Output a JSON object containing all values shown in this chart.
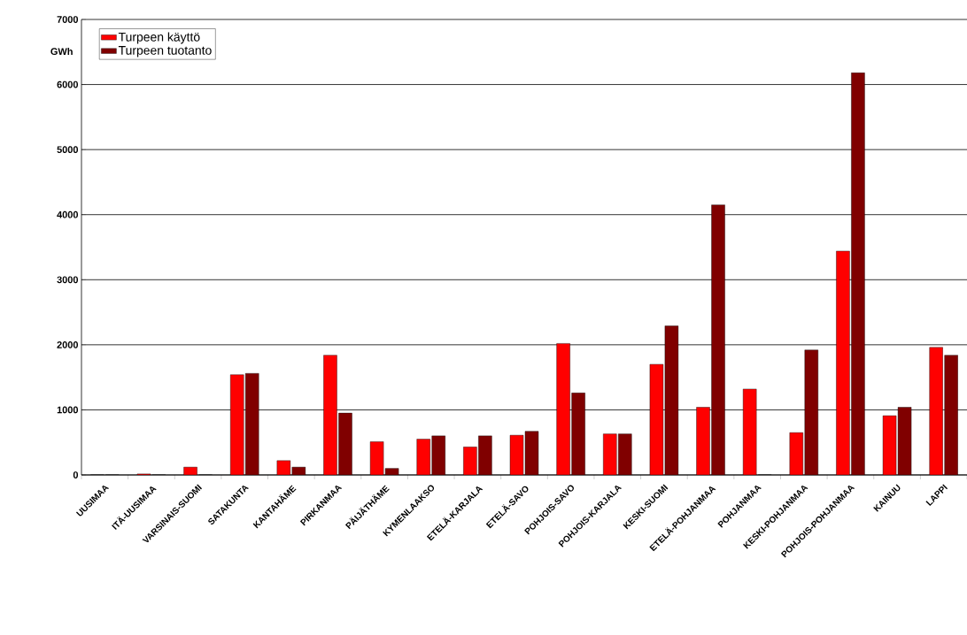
{
  "chart_data": {
    "type": "bar",
    "ylabel": "GWh",
    "categories": [
      "UUSIMAA",
      "ITÄ-UUSIMAA",
      "VARSINAIS-SUOMI",
      "SATAKUNTA",
      "KANTAHÄME",
      "PIRKANMAA",
      "PÄIJÄTHÄME",
      "KYMENLAAKSO",
      "ETELÄ-KARJALA",
      "ETELÄ-SAVO",
      "POHJOIS-SAVO",
      "POHJOIS-KARJALA",
      "KESKI-SUOMI",
      "ETELÄ-POHJANMAA",
      "POHJANMAA",
      "KESKI-POHJANMAA",
      "POHJOIS-POHJANMAA",
      "KAINUU",
      "LAPPI"
    ],
    "series": [
      {
        "name": "Turpeen käyttö",
        "color": "#ff0000",
        "values": [
          0,
          15,
          120,
          1540,
          220,
          1840,
          510,
          550,
          430,
          610,
          2020,
          630,
          1700,
          1040,
          1320,
          650,
          3440,
          910,
          1960
        ]
      },
      {
        "name": "Turpeen tuotanto",
        "color": "#800000",
        "values": [
          0,
          0,
          0,
          1560,
          120,
          950,
          100,
          600,
          600,
          670,
          1260,
          630,
          2290,
          4150,
          0,
          1920,
          6180,
          1040,
          1840
        ]
      }
    ],
    "ylim": [
      0,
      7000
    ],
    "yticks": [
      0,
      1000,
      2000,
      3000,
      4000,
      5000,
      6000,
      7000
    ],
    "grid": "y",
    "legend": "top left"
  }
}
